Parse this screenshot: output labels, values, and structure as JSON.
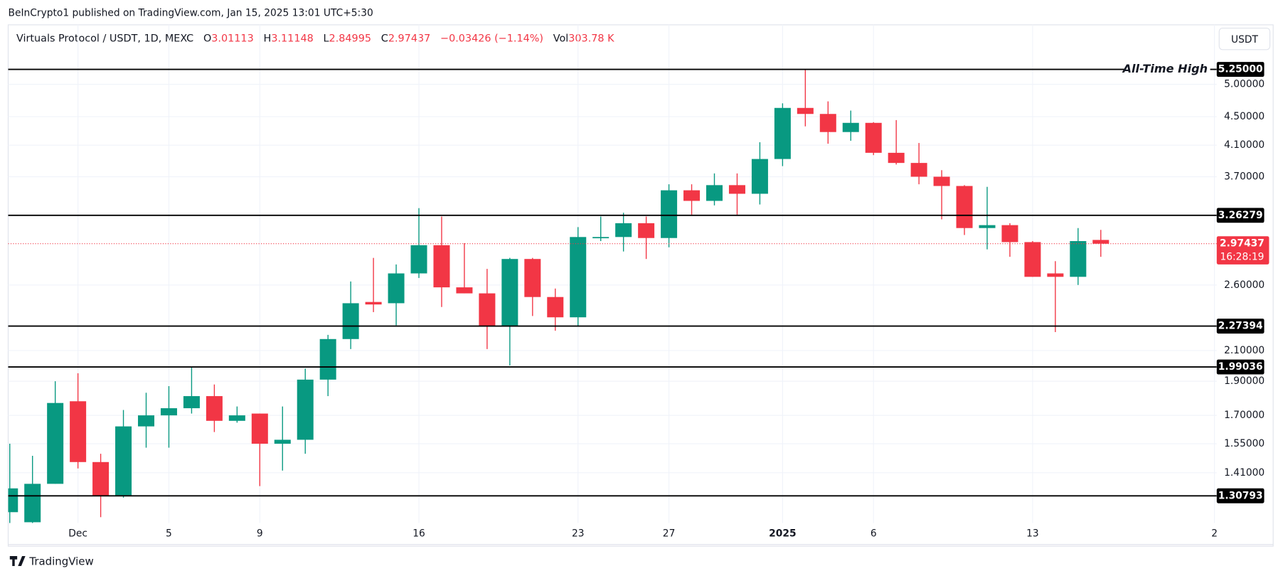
{
  "header": {
    "published": "BeInCrypto1 published on TradingView.com, Jan 15, 2025 13:01 UTC+5:30",
    "currency": "USDT",
    "brand": "TradingView"
  },
  "chart_data": {
    "type": "candlestick",
    "symbol": "Virtuals Protocol / USDT, 1D, MEXC",
    "ohlc_letters": [
      "O",
      "H",
      "L",
      "C"
    ],
    "change": "−0.03426 (−1.14%)",
    "volume_label": "Vol",
    "volume": "303.78 K",
    "up_color": "#089981",
    "down_color": "#f23645",
    "log_scale": true,
    "grid": true,
    "open": [
      1.24,
      1.2,
      1.36,
      1.78,
      1.46,
      1.31,
      1.64,
      1.7,
      1.74,
      1.81,
      1.67,
      1.71,
      1.55,
      1.57,
      1.91,
      2.18,
      2.46,
      2.45,
      2.7,
      2.96,
      2.58,
      2.53,
      2.27,
      2.83,
      2.5,
      2.34,
      3.03,
      3.04,
      3.18,
      3.03,
      3.54,
      3.42,
      3.6,
      3.5,
      3.92,
      4.63,
      4.54,
      4.28,
      4.41,
      4.0,
      3.87,
      3.7,
      3.59,
      3.13,
      3.16,
      2.99,
      2.7,
      2.67,
      3.01113
    ],
    "high": [
      1.55,
      1.49,
      1.9,
      1.95,
      1.5,
      1.73,
      1.83,
      1.87,
      1.99,
      1.88,
      1.75,
      1.71,
      1.75,
      1.98,
      2.21,
      2.63,
      2.84,
      2.78,
      3.34,
      3.25,
      2.98,
      2.74,
      2.84,
      2.84,
      2.57,
      3.14,
      3.25,
      3.29,
      3.25,
      3.61,
      3.61,
      3.74,
      3.74,
      4.14,
      4.7,
      5.25,
      4.73,
      4.59,
      4.42,
      4.45,
      4.13,
      3.78,
      3.6,
      3.58,
      3.18,
      3.0,
      2.81,
      3.13,
      3.11148
    ],
    "low": [
      1.14,
      1.19,
      1.36,
      1.43,
      1.22,
      1.3,
      1.53,
      1.53,
      1.71,
      1.61,
      1.66,
      1.35,
      1.42,
      1.5,
      1.81,
      2.11,
      2.38,
      2.28,
      2.66,
      2.42,
      2.53,
      2.11,
      2.0,
      2.35,
      2.24,
      2.27,
      3.0,
      2.9,
      2.83,
      2.94,
      3.27,
      3.37,
      3.27,
      3.38,
      3.83,
      4.36,
      4.12,
      4.16,
      3.97,
      3.85,
      3.61,
      3.22,
      3.06,
      2.92,
      2.85,
      2.67,
      2.23,
      2.6,
      2.84995
    ],
    "close": [
      1.34,
      1.36,
      1.77,
      1.46,
      1.31,
      1.64,
      1.7,
      1.74,
      1.81,
      1.67,
      1.7,
      1.55,
      1.57,
      1.91,
      2.18,
      2.45,
      2.44,
      2.7,
      2.96,
      2.58,
      2.53,
      2.27,
      2.83,
      2.5,
      2.34,
      3.04,
      3.04,
      3.18,
      3.03,
      3.54,
      3.42,
      3.6,
      3.5,
      3.92,
      4.63,
      4.54,
      4.28,
      4.41,
      4.0,
      3.87,
      3.7,
      3.59,
      3.13,
      3.16,
      2.99,
      2.67,
      2.67,
      3.0,
      2.97437
    ],
    "countdown": "16:28:19",
    "xlim": [
      -0.07,
      53.1
    ],
    "xticks": [
      {
        "value": 3,
        "label": "Dec"
      },
      {
        "value": 7,
        "label": "5"
      },
      {
        "value": 11,
        "label": "9"
      },
      {
        "value": 18,
        "label": "16"
      },
      {
        "value": 25,
        "label": "23"
      },
      {
        "value": 29,
        "label": "27"
      },
      {
        "value": 34,
        "label": "2025"
      },
      {
        "value": 38,
        "label": "6"
      },
      {
        "value": 45,
        "label": "13"
      },
      {
        "value": 53,
        "label": "2"
      }
    ],
    "ylim": [
      1.197,
      6.07
    ],
    "yticks": [
      {
        "value": 5.0,
        "label": "5.00000"
      },
      {
        "value": 4.5,
        "label": "4.50000"
      },
      {
        "value": 4.1,
        "label": "4.10000"
      },
      {
        "value": 3.7,
        "label": "3.70000"
      },
      {
        "value": 2.6,
        "label": "2.60000"
      },
      {
        "value": 2.1,
        "label": "2.10000"
      },
      {
        "value": 1.9,
        "label": "1.90000"
      },
      {
        "value": 1.7,
        "label": "1.70000"
      },
      {
        "value": 1.55,
        "label": "1.55000"
      },
      {
        "value": 1.41,
        "label": "1.41000"
      }
    ],
    "levels": [
      {
        "value": 5.25,
        "label": "5.25000"
      },
      {
        "value": 3.26279,
        "label": "3.26279"
      },
      {
        "value": 2.27394,
        "label": "2.27394"
      },
      {
        "value": 1.99036,
        "label": "1.99036"
      },
      {
        "value": 1.30793,
        "label": "1.30793"
      }
    ],
    "annotation": "All-Time High"
  }
}
